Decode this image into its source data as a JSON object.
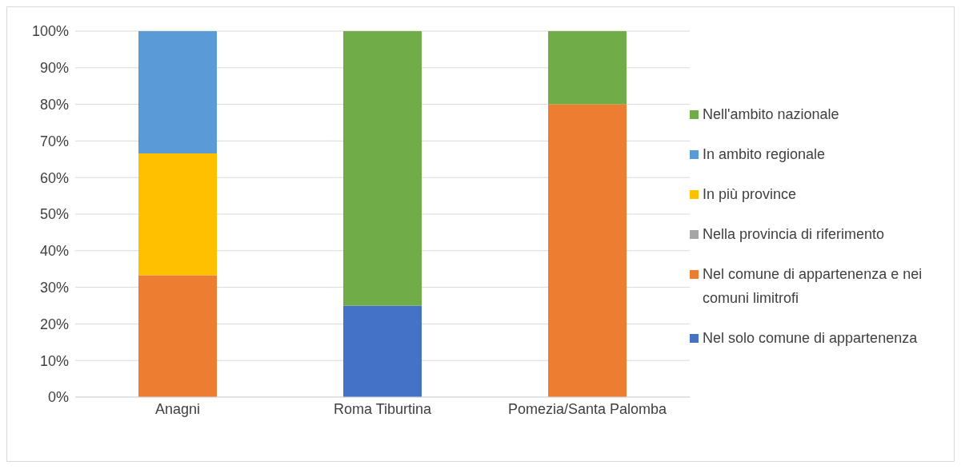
{
  "chart_data": {
    "type": "bar",
    "stacked": true,
    "categories": [
      "Anagni",
      "Roma Tiburtina",
      "Pomezia/Santa Palomba"
    ],
    "series": [
      {
        "name": "Nel solo comune di appartenenza",
        "color": "#4472c4",
        "values": [
          0,
          25,
          0
        ]
      },
      {
        "name": "Nel comune di appartenenza e nei comuni limitrofi",
        "color": "#ed7d31",
        "values": [
          33.3,
          0,
          80
        ]
      },
      {
        "name": "Nella provincia di riferimento",
        "color": "#a5a5a5",
        "values": [
          0,
          0,
          0
        ]
      },
      {
        "name": "In più province",
        "color": "#ffc000",
        "values": [
          33.3,
          0,
          0
        ]
      },
      {
        "name": "In ambito regionale",
        "color": "#5b9bd5",
        "values": [
          33.4,
          0,
          0
        ]
      },
      {
        "name": "Nell'ambito nazionale",
        "color": "#70ad47",
        "values": [
          0,
          75,
          20
        ]
      }
    ],
    "ylim": [
      0,
      100
    ],
    "yticks": [
      {
        "value": 0,
        "label": "0%"
      },
      {
        "value": 10,
        "label": "10%"
      },
      {
        "value": 20,
        "label": "20%"
      },
      {
        "value": 30,
        "label": "30%"
      },
      {
        "value": 40,
        "label": "40%"
      },
      {
        "value": 50,
        "label": "50%"
      },
      {
        "value": 60,
        "label": "60%"
      },
      {
        "value": 70,
        "label": "70%"
      },
      {
        "value": 80,
        "label": "80%"
      },
      {
        "value": 90,
        "label": "90%"
      },
      {
        "value": 100,
        "label": "100%"
      }
    ],
    "grid": "y",
    "legend": "right"
  }
}
